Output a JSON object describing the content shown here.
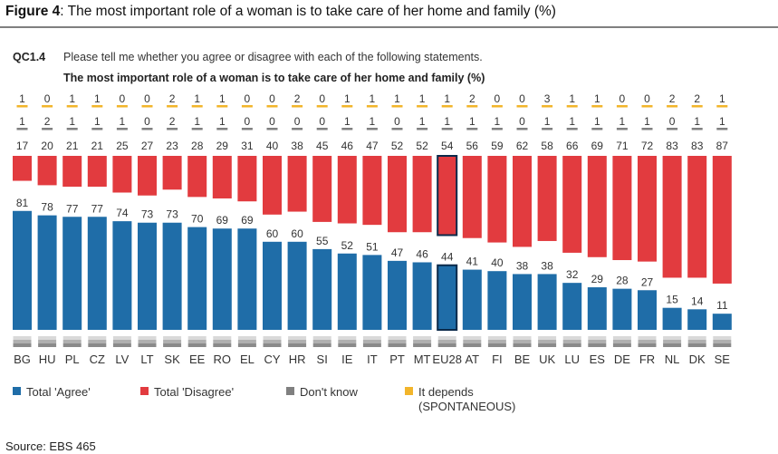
{
  "figure": {
    "label": "Figure 4",
    "text": "The most important role of a woman is to take care of her home and family (%)"
  },
  "source": "Source: EBS 465",
  "colors": {
    "agree": "#1f6da8",
    "disagree": "#e23b3f",
    "dont_know": "#808080",
    "it_depends": "#f2b52b",
    "highlight_outline": "#0b2a4a"
  },
  "chart_data": {
    "type": "bar",
    "question_code": "QC1.4",
    "question": "Please tell me whether you agree or disagree with each of the following statements.",
    "statement": "The most important role of a woman is to take care of her home and family (%)",
    "categories": [
      "BG",
      "HU",
      "PL",
      "CZ",
      "LV",
      "LT",
      "SK",
      "EE",
      "RO",
      "EL",
      "CY",
      "HR",
      "SI",
      "IE",
      "IT",
      "PT",
      "MT",
      "EU28",
      "AT",
      "FI",
      "BE",
      "UK",
      "LU",
      "ES",
      "DE",
      "FR",
      "NL",
      "DK",
      "SE"
    ],
    "flag_icons": [
      "bg-flag-icon",
      "hu-flag-icon",
      "pl-flag-icon",
      "cz-flag-icon",
      "lv-flag-icon",
      "lt-flag-icon",
      "sk-flag-icon",
      "ee-flag-icon",
      "ro-flag-icon",
      "el-flag-icon",
      "cy-flag-icon",
      "hr-flag-icon",
      "si-flag-icon",
      "ie-flag-icon",
      "it-flag-icon",
      "pt-flag-icon",
      "mt-flag-icon",
      "eu-flag-icon",
      "at-flag-icon",
      "fi-flag-icon",
      "be-flag-icon",
      "uk-flag-icon",
      "lu-flag-icon",
      "es-flag-icon",
      "de-flag-icon",
      "fr-flag-icon",
      "nl-flag-icon",
      "dk-flag-icon",
      "se-flag-icon"
    ],
    "highlight": "EU28",
    "series": [
      {
        "name": "Total 'Agree'",
        "values": [
          81,
          78,
          77,
          77,
          74,
          73,
          73,
          70,
          69,
          69,
          60,
          60,
          55,
          52,
          51,
          47,
          46,
          44,
          41,
          40,
          38,
          38,
          32,
          29,
          28,
          27,
          15,
          14,
          11
        ]
      },
      {
        "name": "Total 'Disagree'",
        "values": [
          17,
          20,
          21,
          21,
          25,
          27,
          23,
          28,
          29,
          31,
          40,
          38,
          45,
          46,
          47,
          52,
          52,
          54,
          56,
          59,
          62,
          58,
          66,
          69,
          71,
          72,
          83,
          83,
          87
        ]
      },
      {
        "name": "Don't know",
        "values": [
          1,
          2,
          1,
          1,
          1,
          0,
          2,
          1,
          1,
          0,
          0,
          0,
          0,
          1,
          1,
          0,
          1,
          1,
          1,
          1,
          0,
          1,
          1,
          1,
          1,
          1,
          0,
          1,
          1
        ]
      },
      {
        "name": "It depends (SPONTANEOUS)",
        "values": [
          1,
          0,
          1,
          1,
          0,
          0,
          2,
          1,
          1,
          0,
          0,
          2,
          0,
          1,
          1,
          1,
          1,
          1,
          2,
          0,
          0,
          3,
          1,
          1,
          0,
          0,
          2,
          2,
          1
        ]
      }
    ],
    "ylim": [
      0,
      100
    ],
    "legend_position": "bottom"
  }
}
